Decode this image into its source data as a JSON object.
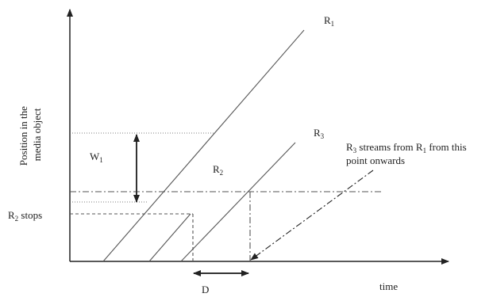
{
  "y_axis_label": [
    "Position in the",
    "media object"
  ],
  "x_axis_label": "time",
  "labels": {
    "r1": {
      "base": "R",
      "sub": "1"
    },
    "r2": {
      "base": "R",
      "sub": "2"
    },
    "r3": {
      "base": "R",
      "sub": "3"
    },
    "w1": {
      "base": "W",
      "sub": "1"
    },
    "d": "D",
    "r2_stops": {
      "base": "R",
      "sub": "2",
      "rest": " stops"
    },
    "r3_note": {
      "base": "R",
      "sub": "3",
      "rest": " streams from R",
      "sub2": "1",
      "rest2": " from this",
      "line2": "point onwards"
    }
  }
}
